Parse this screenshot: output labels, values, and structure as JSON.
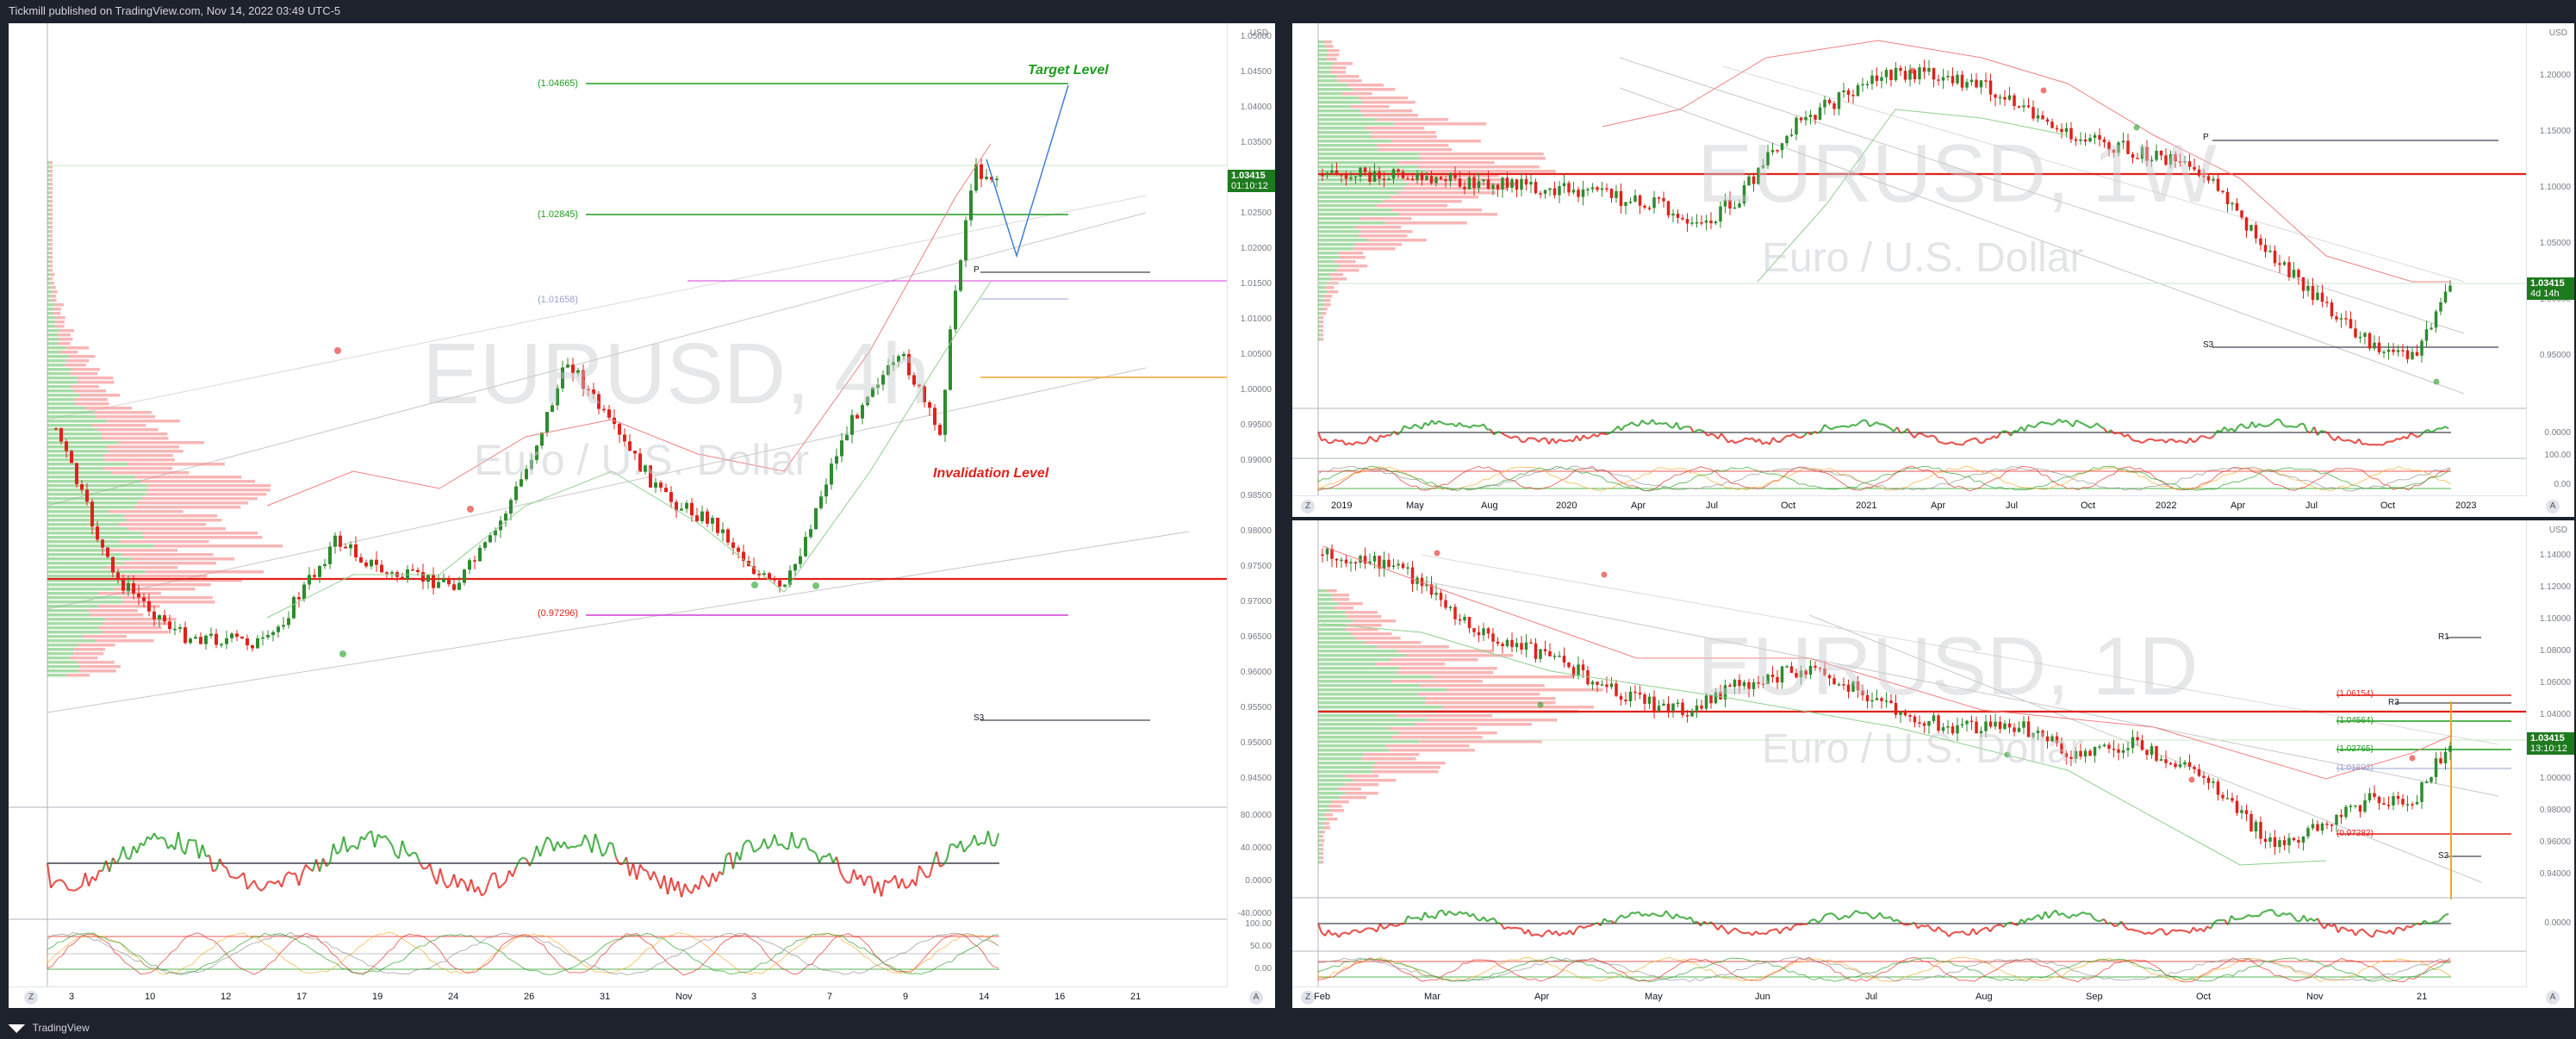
{
  "header": {
    "text": "Tickmill published on TradingView.com, Nov 14, 2022 03:49 UTC-5"
  },
  "footer": {
    "brand": "TradingView",
    "logo": "tv-logo-icon"
  },
  "colors": {
    "up": "#2e8b2e",
    "down": "#e0221b",
    "green": "#1e9c1e",
    "red": "#e0221b",
    "magenta": "#d63bd6",
    "orange": "#f5a623",
    "blue": "#3f7fd9"
  },
  "left": {
    "symbol": "EURUSD, 4h",
    "subtitle": "Euro / U.S. Dollar",
    "currency": "USD",
    "price": "1.03415",
    "timer": "01:10:12",
    "target_label": "Target Level",
    "invalidation_label": "Invalidation Level",
    "levels": [
      "(1.04665)",
      "(1.02845)",
      "(1.01658)",
      "(0.97296)"
    ],
    "pivots": [
      "P",
      "S3"
    ],
    "yticks": [
      "1.05000",
      "1.04500",
      "1.04000",
      "1.03500",
      "1.03000",
      "1.02500",
      "1.02000",
      "1.01500",
      "1.01000",
      "1.00500",
      "1.00000",
      "0.99500",
      "0.99000",
      "0.98500",
      "0.98000",
      "0.97500",
      "0.97000",
      "0.96500",
      "0.96000",
      "0.95500",
      "0.95000",
      "0.94500"
    ],
    "osc_ticks": [
      "80.0000",
      "40.0000",
      "0.0000",
      "-40.0000"
    ],
    "stoch_ticks": [
      "100.00",
      "50.00",
      "0.00"
    ],
    "xticks": [
      "3",
      "10",
      "12",
      "17",
      "19",
      "24",
      "26",
      "31",
      "Nov",
      "3",
      "7",
      "9",
      "14",
      "16",
      "21"
    ],
    "corner_left": "Z",
    "corner_right": "A"
  },
  "topright": {
    "symbol": "EURUSD, 1W",
    "subtitle": "Euro / U.S. Dollar",
    "currency": "USD",
    "price": "1.03415",
    "timer": "4d 14h",
    "pivots": [
      "P",
      "S3"
    ],
    "yticks": [
      "1.20000",
      "1.15000",
      "1.10000",
      "1.05000",
      "1.00000",
      "0.95000"
    ],
    "osc_ticks": [
      "0.0000"
    ],
    "stoch_ticks": [
      "100.00",
      "0.00"
    ],
    "xticks": [
      "2019",
      "May",
      "Aug",
      "2020",
      "Apr",
      "Jul",
      "Oct",
      "2021",
      "Apr",
      "Jul",
      "Oct",
      "2022",
      "Apr",
      "Jul",
      "Oct",
      "2023"
    ],
    "corner_left": "Z",
    "corner_right": "A"
  },
  "bottomright": {
    "symbol": "EURUSD, 1D",
    "subtitle": "Euro / U.S. Dollar",
    "currency": "USD",
    "price": "1.03415",
    "timer": "13:10:12",
    "levels": [
      "(1.06154)",
      "(1.04564)",
      "(1.02765)",
      "(1.01892)",
      "(0.97282)"
    ],
    "pivots": [
      "R1",
      "R3",
      "S2"
    ],
    "yticks": [
      "1.14000",
      "1.12000",
      "1.10000",
      "1.08000",
      "1.06000",
      "1.04000",
      "1.02000",
      "1.00000",
      "0.98000",
      "0.96000",
      "0.94000"
    ],
    "osc_ticks": [
      "0.0000"
    ],
    "xticks": [
      "Feb",
      "Mar",
      "Apr",
      "May",
      "Jun",
      "Jul",
      "Aug",
      "Sep",
      "Oct",
      "Nov",
      "21"
    ],
    "corner_left": "Z",
    "corner_right": "A"
  }
}
